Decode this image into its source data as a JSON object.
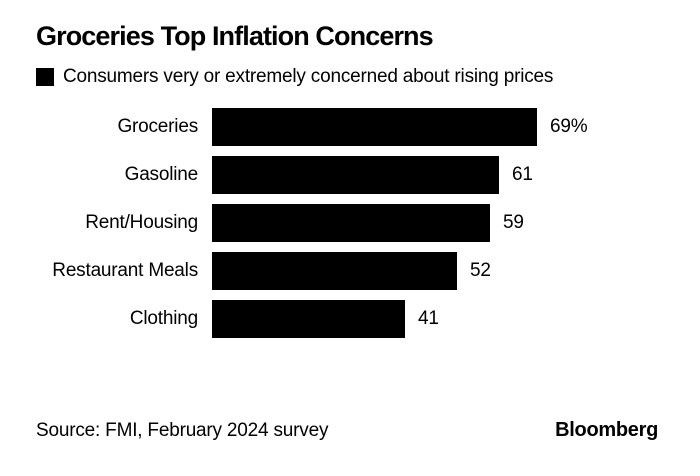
{
  "title": "Groceries Top Inflation Concerns",
  "legend": {
    "swatch_color": "#000000",
    "label": "Consumers very or extremely concerned about rising prices"
  },
  "chart_data": {
    "type": "bar",
    "orientation": "horizontal",
    "title": "Groceries Top Inflation Concerns",
    "subtitle_legend": "Consumers very or extremely concerned about rising prices",
    "categories": [
      "Groceries",
      "Gasoline",
      "Rent/Housing",
      "Restaurant Meals",
      "Clothing"
    ],
    "values": [
      69,
      61,
      59,
      52,
      41
    ],
    "value_labels": [
      "69%",
      "61",
      "59",
      "52",
      "41"
    ],
    "unit": "percent",
    "xlim": [
      0,
      69
    ],
    "bar_color": "#000000",
    "grid": false,
    "legend_position": "top-left"
  },
  "footer": {
    "source": "Source: FMI, February 2024 survey",
    "brand": "Bloomberg"
  },
  "colors": {
    "background": "#ffffff",
    "text": "#000000",
    "bar": "#000000"
  }
}
